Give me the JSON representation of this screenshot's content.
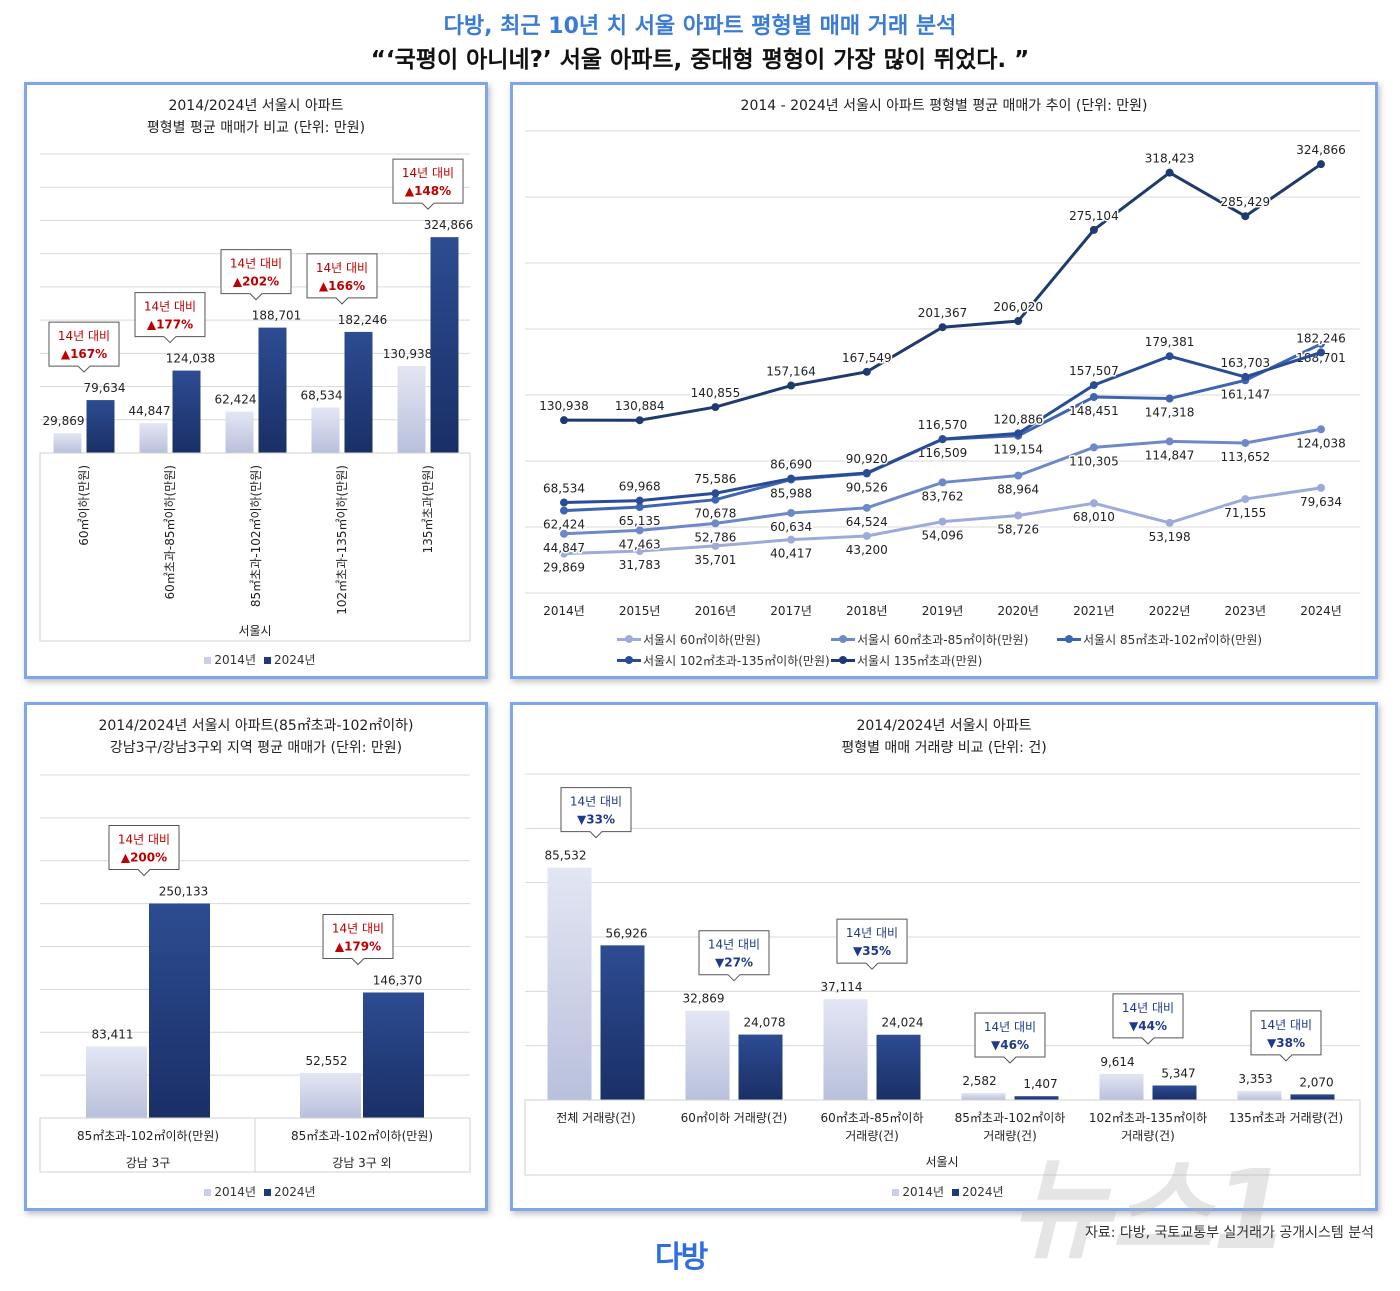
{
  "header": {
    "title": "다방, 최근 10년 치 서울 아파트 평형별 매매 거래 분석",
    "subtitle": "“‘국평이 아니네?’ 서울 아파트, 중대형 평형이 가장 많이 뛰었다. ”"
  },
  "footer": {
    "source": "자료: 다방, 국토교통부 실거래가 공개시스템 분석",
    "logo": "다방",
    "watermark": "뉴스1"
  },
  "colors": {
    "y2014": "#c9cfe6",
    "y2024": "#1f3a78",
    "up": "#c00000",
    "down": "#1f3a8a",
    "border": "#7fa6e8",
    "lines": [
      "#9eabd8",
      "#6f88c8",
      "#3f64b1",
      "#2a4c94",
      "#1f3a6e"
    ]
  },
  "legend_bars": [
    "2014년",
    "2024년"
  ],
  "chart_data": [
    {
      "type": "bar",
      "title": [
        "2014/2024년 서울시 아파트",
        "평형별 평균 매매가 비교 (단위: 만원)"
      ],
      "categories": [
        "60㎡이하(만원)",
        "60㎡초과-85㎡이하(만원)",
        "85㎡초과-102㎡이하(만원)",
        "102㎡초과-135㎡이하(만원)",
        "135㎡초과(만원)"
      ],
      "group_label": "서울시",
      "ylim": [
        0,
        450000
      ],
      "grid": true,
      "series": [
        {
          "name": "2014년",
          "values": [
            29869,
            44847,
            62424,
            68534,
            130938
          ]
        },
        {
          "name": "2024년",
          "values": [
            79634,
            124038,
            188701,
            182246,
            324866
          ]
        }
      ],
      "annotations": [
        {
          "label": "14년 대비",
          "change": "▲167%"
        },
        {
          "label": "14년 대비",
          "change": "▲177%"
        },
        {
          "label": "14년 대비",
          "change": "▲202%"
        },
        {
          "label": "14년 대비",
          "change": "▲166%"
        },
        {
          "label": "14년 대비",
          "change": "▲148%"
        }
      ]
    },
    {
      "type": "line",
      "title": "2014 - 2024년 서울시 아파트 평형별 평균 매매가 추이 (단위: 만원)",
      "x": [
        "2014년",
        "2015년",
        "2016년",
        "2017년",
        "2018년",
        "2019년",
        "2020년",
        "2021년",
        "2022년",
        "2023년",
        "2024년"
      ],
      "ylim": [
        0,
        350000
      ],
      "grid": true,
      "legend": "bottom",
      "series": [
        {
          "name": "서울시 60㎡이하(만원)",
          "values": [
            29869,
            31783,
            35701,
            40417,
            43200,
            54096,
            58726,
            68010,
            53198,
            71155,
            79634
          ]
        },
        {
          "name": "서울시 60㎡초과-85㎡이하(만원)",
          "values": [
            44847,
            47463,
            52786,
            60634,
            64524,
            83762,
            88964,
            110305,
            114847,
            113652,
            124038
          ]
        },
        {
          "name": "서울시 85㎡초과-102㎡이하(만원)",
          "values": [
            62424,
            65135,
            70678,
            85988,
            90526,
            116509,
            119154,
            148451,
            147318,
            161147,
            188701
          ]
        },
        {
          "name": "서울시 102㎡초과-135㎡이하(만원)",
          "values": [
            68534,
            69968,
            75586,
            86690,
            90920,
            116570,
            120886,
            157507,
            179381,
            163703,
            182246
          ]
        },
        {
          "name": "서울시 135㎡초과(만원)",
          "values": [
            130938,
            130884,
            140855,
            157164,
            167549,
            201367,
            206020,
            275104,
            318423,
            285429,
            324866
          ]
        }
      ]
    },
    {
      "type": "bar",
      "title": [
        "2014/2024년 서울시 아파트(85㎡초과-102㎡이하)",
        "강남3구/강남3구외 지역 평균 매매가 (단위: 만원)"
      ],
      "categories": [
        "85㎡초과-102㎡이하(만원)",
        "85㎡초과-102㎡이하(만원)"
      ],
      "group_labels": [
        "강남 3구",
        "강남 3구 외"
      ],
      "ylim": [
        0,
        400000
      ],
      "grid": true,
      "series": [
        {
          "name": "2014년",
          "values": [
            83411,
            52552
          ]
        },
        {
          "name": "2024년",
          "values": [
            250133,
            146370
          ]
        }
      ],
      "annotations": [
        {
          "label": "14년 대비",
          "change": "▲200%"
        },
        {
          "label": "14년 대비",
          "change": "▲179%"
        }
      ]
    },
    {
      "type": "bar",
      "title": [
        "2014/2024년 서울시 아파트",
        "평형별 매매 거래량 비교 (단위: 건)"
      ],
      "categories": [
        [
          "전체 거래량(건)"
        ],
        [
          "60㎡이하 거래량(건)"
        ],
        [
          "60㎡초과-85㎡이하",
          "거래량(건)"
        ],
        [
          "85㎡초과-102㎡이하",
          "거래량(건)"
        ],
        [
          "102㎡초과-135㎡이하",
          "거래량(건)"
        ],
        [
          "135㎡초과 거래량(건)"
        ]
      ],
      "group_label": "서울시",
      "ylim": [
        0,
        120000
      ],
      "grid": true,
      "series": [
        {
          "name": "2014년",
          "values": [
            85532,
            32869,
            37114,
            2582,
            9614,
            3353
          ]
        },
        {
          "name": "2024년",
          "values": [
            56926,
            24078,
            24024,
            1407,
            5347,
            2070
          ]
        }
      ],
      "annotations": [
        {
          "label": "14년 대비",
          "change": "▼33%"
        },
        {
          "label": "14년 대비",
          "change": "▼27%"
        },
        {
          "label": "14년 대비",
          "change": "▼35%"
        },
        {
          "label": "14년 대비",
          "change": "▼46%"
        },
        {
          "label": "14년 대비",
          "change": "▼44%"
        },
        {
          "label": "14년 대비",
          "change": "▼38%"
        }
      ]
    }
  ]
}
